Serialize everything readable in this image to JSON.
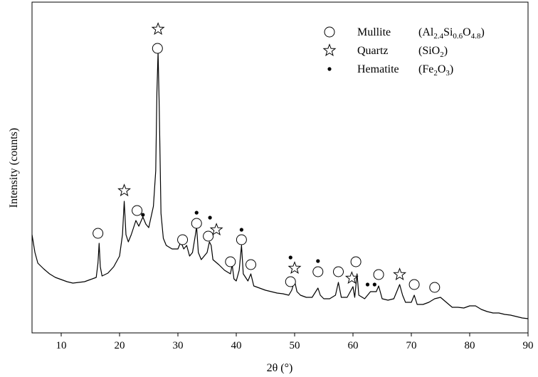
{
  "chart_data": {
    "type": "line",
    "xlabel": "2θ (°)",
    "ylabel": "Intensity (counts)",
    "xlim": [
      5,
      90
    ],
    "xticks": [
      10,
      20,
      30,
      40,
      50,
      60,
      70,
      80,
      90
    ],
    "ylim": [
      0,
      465
    ],
    "series": [
      {
        "color": "#000000",
        "x": [
          5,
          5.5,
          6,
          7,
          8,
          9,
          10,
          11,
          12,
          13,
          14,
          15,
          16,
          16.3,
          16.5,
          16.7,
          17,
          18,
          19,
          20,
          20.5,
          20.8,
          21.1,
          21.5,
          22,
          22.8,
          23.3,
          24,
          24.5,
          25,
          25.8,
          26.2,
          26.4,
          26.6,
          26.8,
          27.1,
          27.5,
          28,
          29,
          30,
          30.5,
          31,
          31.5,
          32,
          32.5,
          33,
          33.2,
          33.5,
          34,
          35,
          35.4,
          35.7,
          36,
          37,
          38,
          39,
          39.3,
          39.6,
          40,
          40.5,
          40.9,
          41.2,
          42,
          42.5,
          43,
          44,
          45,
          46,
          47,
          48,
          49,
          49.5,
          50,
          50.4,
          51,
          52,
          53,
          54,
          54.4,
          55,
          56,
          57,
          57.5,
          58,
          59,
          60,
          60.3,
          60.7,
          61,
          62,
          63,
          64,
          64.4,
          65,
          66,
          67,
          68,
          68.5,
          69,
          70,
          70.5,
          71,
          72,
          73,
          74,
          75,
          76,
          77,
          78,
          79,
          80,
          81,
          82,
          83,
          84,
          85,
          86,
          87,
          88,
          89,
          90
        ],
        "values": [
          138,
          113,
          98,
          90,
          83,
          78,
          75,
          72,
          70,
          71,
          72,
          75,
          78,
          98,
          126,
          93,
          80,
          84,
          93,
          108,
          138,
          185,
          138,
          128,
          138,
          158,
          150,
          163,
          153,
          148,
          178,
          228,
          338,
          395,
          318,
          168,
          133,
          123,
          118,
          118,
          128,
          118,
          123,
          108,
          113,
          138,
          150,
          113,
          103,
          113,
          128,
          123,
          103,
          96,
          88,
          83,
          96,
          76,
          73,
          88,
          123,
          83,
          73,
          83,
          66,
          63,
          60,
          58,
          56,
          55,
          53,
          60,
          73,
          58,
          53,
          50,
          50,
          63,
          53,
          48,
          48,
          53,
          71,
          50,
          50,
          65,
          50,
          83,
          53,
          48,
          58,
          58,
          66,
          48,
          46,
          48,
          68,
          53,
          43,
          43,
          53,
          40,
          40,
          43,
          48,
          50,
          43,
          36,
          36,
          35,
          38,
          38,
          33,
          30,
          28,
          28,
          26,
          25,
          23,
          21,
          20
        ]
      }
    ],
    "phases": [
      {
        "name": "Mullite",
        "formula": [
          "(Al",
          "2.4",
          "Si",
          "0.6",
          "O",
          "4.8",
          ")"
        ],
        "marker": "circle",
        "x": [
          16.3,
          23,
          26.5,
          30.8,
          33.2,
          35.2,
          39,
          40.9,
          42.5,
          49.3,
          54,
          57.5,
          60.5,
          64.4,
          70.5,
          74
        ],
        "y": [
          140,
          172,
          400,
          131,
          154,
          136,
          100,
          131,
          96,
          72,
          86,
          86,
          100,
          82,
          68,
          64
        ]
      },
      {
        "name": "Quartz",
        "formula": [
          "(SiO",
          "2",
          ")"
        ],
        "marker": "star",
        "x": [
          20.8,
          26.6,
          36.6,
          50,
          59.8,
          68
        ],
        "y": [
          200,
          427,
          145,
          91,
          77,
          82
        ]
      },
      {
        "name": "Hematite",
        "formula": [
          "(Fe",
          "2",
          "O",
          "3",
          ")"
        ],
        "marker": "dot",
        "x": [
          24,
          33.2,
          35.5,
          40.9,
          49.3,
          54,
          62.5,
          63.7
        ],
        "y": [
          166,
          169,
          162,
          145,
          106,
          101,
          68,
          68
        ]
      }
    ]
  }
}
